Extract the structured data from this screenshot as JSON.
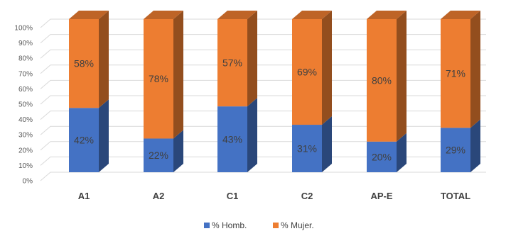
{
  "chart_data": {
    "type": "bar",
    "stacked": true,
    "three_d": true,
    "categories": [
      "A1",
      "A2",
      "C1",
      "C2",
      "AP-E",
      "TOTAL"
    ],
    "series": [
      {
        "name": "% Homb.",
        "values": [
          42,
          22,
          43,
          31,
          20,
          29
        ],
        "color": "#4472C4",
        "labels": [
          "42%",
          "22%",
          "43%",
          "31%",
          "20%",
          "29%"
        ]
      },
      {
        "name": "% Mujer.",
        "values": [
          58,
          78,
          57,
          69,
          80,
          71
        ],
        "color": "#ED7D31",
        "labels": [
          "58%",
          "78%",
          "57%",
          "69%",
          "80%",
          "71%"
        ]
      }
    ],
    "y_ticks": [
      "0%",
      "10%",
      "20%",
      "30%",
      "40%",
      "50%",
      "60%",
      "70%",
      "80%",
      "90%",
      "100%"
    ],
    "ylim": [
      0,
      100
    ],
    "grid": true,
    "legend_position": "bottom"
  }
}
